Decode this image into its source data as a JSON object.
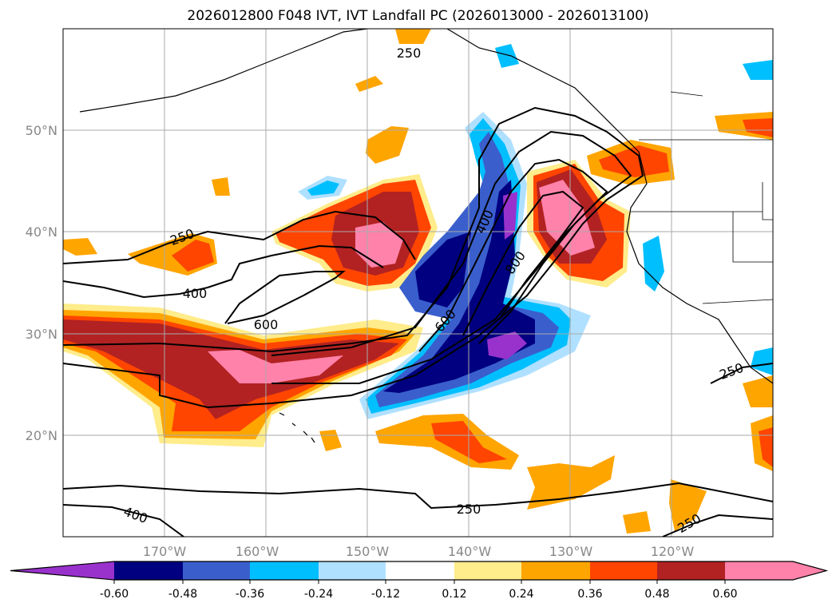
{
  "title": "2026012800 F048 IVT, IVT Landfall PC (2026013000 - 2026013100)",
  "lon_labels": [
    "170°W",
    "160°W",
    "150°W",
    "140°W",
    "130°W",
    "120°W"
  ],
  "lat_labels": [
    "50°N",
    "40°N",
    "30°N",
    "20°N"
  ],
  "contour_labels": [
    "250",
    "250",
    "400",
    "600",
    "400",
    "600",
    "800",
    "250",
    "250",
    "400",
    "250"
  ],
  "colorbar": {
    "ticks": [
      "-0.60",
      "-0.48",
      "-0.36",
      "-0.24",
      "-0.12",
      "0.12",
      "0.24",
      "0.36",
      "0.48",
      "0.60"
    ],
    "colors": [
      "#9932CC",
      "#000080",
      "#3A5FCD",
      "#00BFFF",
      "#B0E0FF",
      "#FFFFFF",
      "#FFEC8B",
      "#FFA500",
      "#FF4500",
      "#B22222",
      "#FF82AB"
    ]
  }
}
